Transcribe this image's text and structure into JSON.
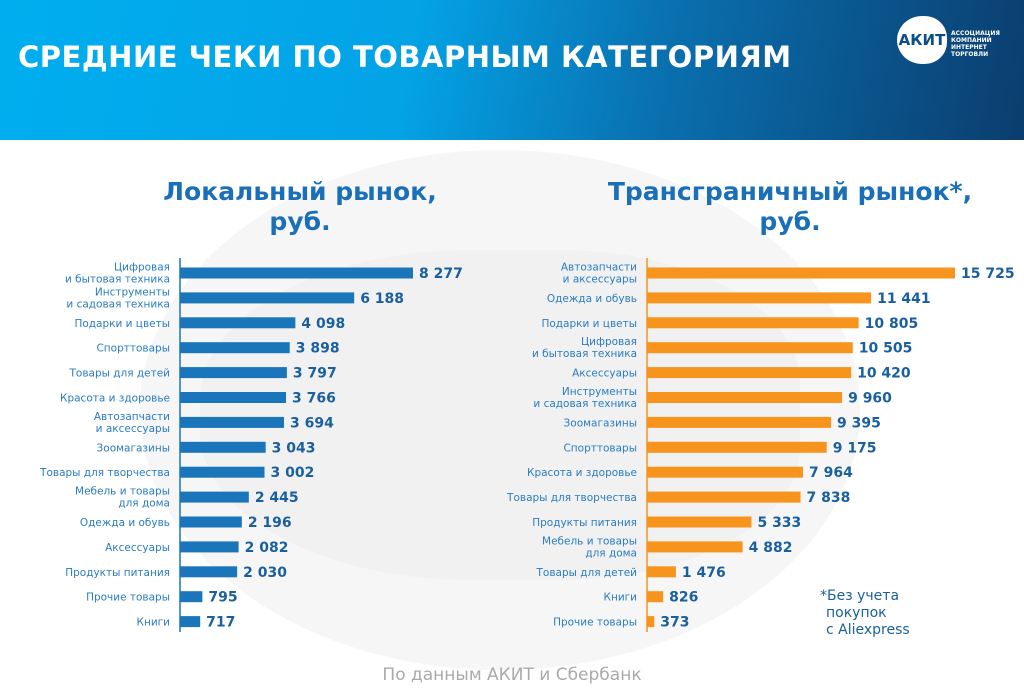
{
  "header": {
    "title": "СРЕДНИЕ ЧЕКИ ПО ТОВАРНЫМ КАТЕГОРИЯМ",
    "logo_text": "АКИТ",
    "logo_caption": "АССОЦИАЦИЯ КОМПАНИЙ ИНТЕРНЕТ ТОРГОВЛИ"
  },
  "colors": {
    "local": "#1a75bb",
    "cross": "#f7941d",
    "label": "#2a7cc0"
  },
  "chart_data": [
    {
      "type": "bar",
      "orientation": "horizontal",
      "title_line1": "Локальный рынок,",
      "title_line2": "руб.",
      "categories": [
        [
          "Цифровая",
          "и бытовая техника"
        ],
        [
          "Инструменты",
          "и садовая техника"
        ],
        [
          "Подарки и цветы"
        ],
        [
          "Спорттовары"
        ],
        [
          "Товары для детей"
        ],
        [
          "Красота и здоровье"
        ],
        [
          "Автозапчасти",
          "и аксессуары"
        ],
        [
          "Зоомагазины"
        ],
        [
          "Товары для творчества"
        ],
        [
          "Мебель и товары",
          "для дома"
        ],
        [
          "Одежда и обувь"
        ],
        [
          "Аксессуары"
        ],
        [
          "Продукты питания"
        ],
        [
          "Прочие товары"
        ],
        [
          "Книги"
        ]
      ],
      "values": [
        8277,
        6188,
        4098,
        3898,
        3797,
        3766,
        3694,
        3043,
        3002,
        2445,
        2196,
        2082,
        2030,
        795,
        717
      ],
      "value_labels": [
        "8 277",
        "6 188",
        "4 098",
        "3 898",
        "3 797",
        "3 766",
        "3 694",
        "3 043",
        "3 002",
        "2 445",
        "2 196",
        "2 082",
        "2 030",
        "795",
        "717"
      ],
      "color": "#1a75bb"
    },
    {
      "type": "bar",
      "orientation": "horizontal",
      "title_line1": "Трансграничный рынок*,",
      "title_line2": "руб.",
      "categories": [
        [
          "Автозапчасти",
          "и аксессуары"
        ],
        [
          "Одежда и обувь"
        ],
        [
          "Подарки и цветы"
        ],
        [
          "Цифровая",
          "и бытовая техника"
        ],
        [
          "Аксессуары"
        ],
        [
          "Инструменты",
          "и садовая техника"
        ],
        [
          "Зоомагазины"
        ],
        [
          "Спорттовары"
        ],
        [
          "Красота и здоровье"
        ],
        [
          "Товары для творчества"
        ],
        [
          "Продукты питания"
        ],
        [
          "Мебель и товары",
          "для дома"
        ],
        [
          "Товары для детей"
        ],
        [
          "Книги"
        ],
        [
          "Прочие товары"
        ]
      ],
      "values": [
        15725,
        11441,
        10805,
        10505,
        10420,
        9960,
        9395,
        9175,
        7964,
        7838,
        5333,
        4882,
        1476,
        826,
        373
      ],
      "value_labels": [
        "15 725",
        "11 441",
        "10 805",
        "10 505",
        "10 420",
        "9 960",
        "9 395",
        "9 175",
        "7 964",
        "7 838",
        "5 333",
        "4 882",
        "1 476",
        "826",
        "373"
      ],
      "color": "#f7941d"
    }
  ],
  "note": {
    "line1": "*Без учета",
    "line2": "покупок",
    "line3": "с Aliexpress"
  },
  "source": "По данным АКИТ и Сбербанк"
}
